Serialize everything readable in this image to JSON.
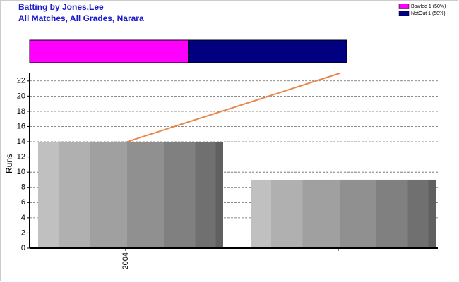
{
  "chart_data": {
    "type": "bar",
    "title": "Batting by Jones,Lee",
    "subtitle": "All Matches, All Grades, Narara",
    "y_label": "Runs",
    "categories": [
      "2004",
      null
    ],
    "values": [
      14,
      9
    ],
    "line": {
      "color": "#e8874a",
      "values": [
        14,
        23
      ]
    },
    "dismissals": [
      {
        "name": "Bowled 1 (50%)",
        "color": "#ff00ff",
        "value": 1
      },
      {
        "name": "NotOut 1 (50%)",
        "color": "#000080",
        "value": 1
      }
    ],
    "ylim": [
      0,
      23
    ],
    "yticks": [
      0,
      2,
      4,
      6,
      8,
      10,
      12,
      14,
      16,
      18,
      20,
      22
    ],
    "grid": true
  }
}
